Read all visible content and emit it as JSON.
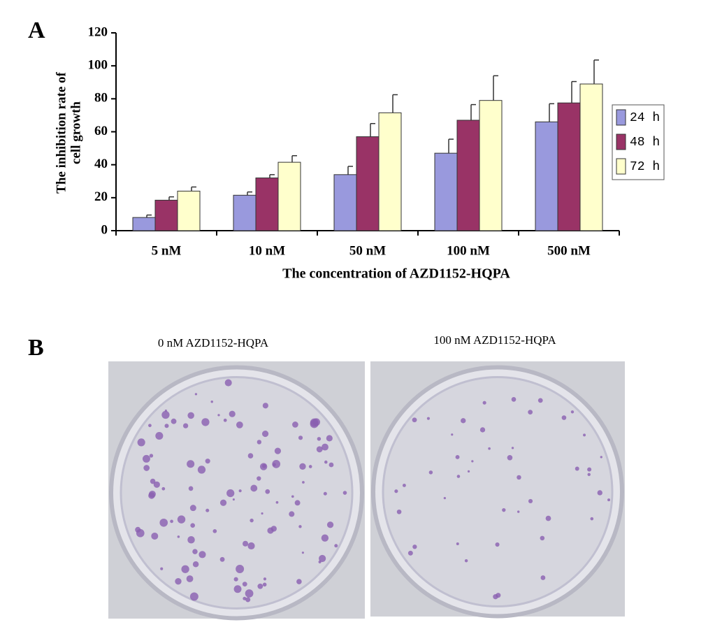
{
  "chart_data": {
    "type": "bar",
    "ylabel_lines": [
      "The inhibition rate of",
      "cell growth"
    ],
    "xlabel": "The concentration of AZD1152-HQPA",
    "categories": [
      "5 nM",
      "10 nM",
      "50 nM",
      "100 nM",
      "500 nM"
    ],
    "series": [
      {
        "name": "24 h",
        "color": "#9999dd",
        "values": [
          8,
          21.5,
          34,
          47,
          66
        ],
        "errors": [
          1.5,
          2,
          5,
          8.5,
          11
        ]
      },
      {
        "name": "48 h",
        "color": "#993366",
        "values": [
          18.5,
          32,
          57,
          67,
          77.5
        ],
        "errors": [
          2,
          2,
          8,
          9.5,
          13
        ]
      },
      {
        "name": "72 h",
        "color": "#ffffcc",
        "values": [
          24,
          41.5,
          71.5,
          79,
          89
        ],
        "errors": [
          2.5,
          4,
          11,
          15,
          14.5
        ]
      }
    ],
    "ylim": [
      0,
      120
    ],
    "yticks": [
      0,
      20,
      40,
      60,
      80,
      100,
      120
    ],
    "legend": "right"
  },
  "panels": {
    "a_label": "A",
    "b_label": "B",
    "images": [
      {
        "caption": "0 nM AZD1152-HQPA"
      },
      {
        "caption": "100 nM AZD1152-HQPA"
      }
    ]
  }
}
